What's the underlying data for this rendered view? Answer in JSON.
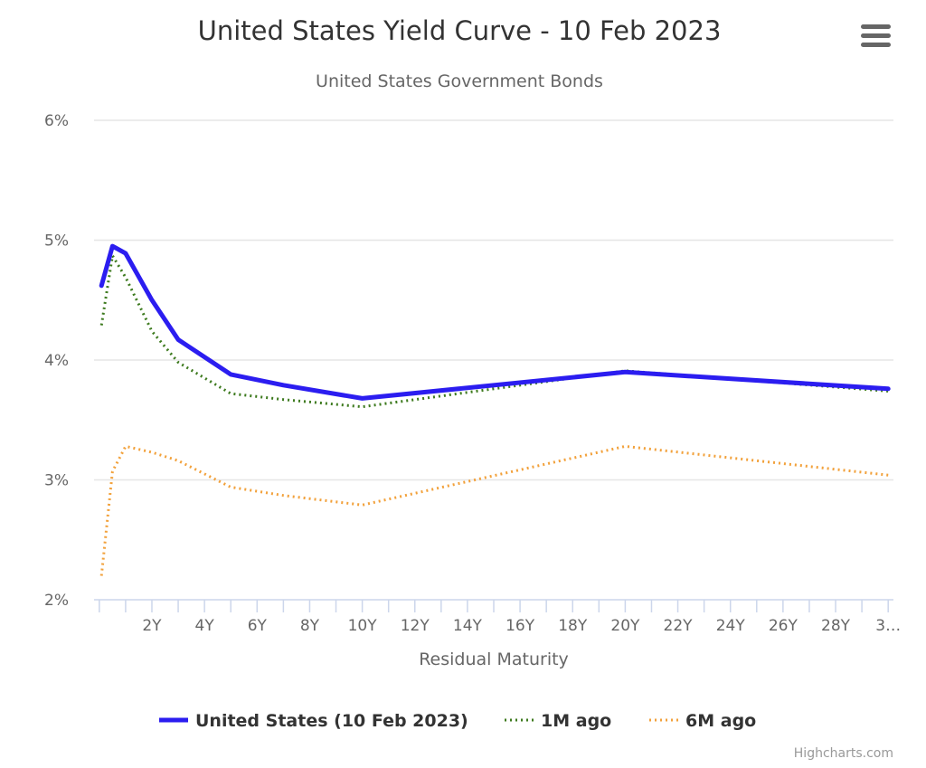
{
  "chart_data": {
    "type": "line",
    "title": "United States Yield Curve - 10 Feb 2023",
    "subtitle": "United States Government Bonds",
    "xlabel": "Residual Maturity",
    "ylabel": "",
    "xlim": [
      -0.2,
      30.2
    ],
    "ylim": [
      2,
      6
    ],
    "x_tick_values": [
      2,
      4,
      6,
      8,
      10,
      12,
      14,
      16,
      18,
      20,
      22,
      24,
      26,
      28,
      30
    ],
    "x_tick_labels": [
      "2Y",
      "4Y",
      "6Y",
      "8Y",
      "10Y",
      "12Y",
      "14Y",
      "16Y",
      "18Y",
      "20Y",
      "22Y",
      "24Y",
      "26Y",
      "28Y",
      "3…"
    ],
    "y_tick_values": [
      2,
      3,
      4,
      5,
      6
    ],
    "y_tick_labels": [
      "2%",
      "3%",
      "4%",
      "5%",
      "6%"
    ],
    "grid": true,
    "legend_position": "bottom-center",
    "series": [
      {
        "name": "United States (10 Feb 2023)",
        "color": "#2b1df0",
        "style": "solid",
        "x": [
          0.083,
          0.5,
          1,
          2,
          3,
          5,
          7,
          10,
          20,
          30
        ],
        "y": [
          4.62,
          4.95,
          4.89,
          4.5,
          4.17,
          3.88,
          3.79,
          3.68,
          3.9,
          3.76
        ]
      },
      {
        "name": "1M ago",
        "color": "#3d7a1e",
        "style": "dotted",
        "x": [
          0.083,
          0.5,
          1,
          2,
          3,
          5,
          7,
          10,
          20,
          30
        ],
        "y": [
          4.29,
          4.87,
          4.69,
          4.24,
          3.98,
          3.72,
          3.67,
          3.61,
          3.91,
          3.74
        ]
      },
      {
        "name": "6M ago",
        "color": "#f2a13b",
        "style": "dotted",
        "x": [
          0.083,
          0.5,
          1,
          2,
          3,
          5,
          7,
          10,
          20,
          30
        ],
        "y": [
          2.2,
          3.07,
          3.28,
          3.23,
          3.16,
          2.94,
          2.87,
          2.79,
          3.28,
          3.04
        ]
      }
    ]
  },
  "credits": "Highcharts.com",
  "menu_icon": "hamburger-menu-icon"
}
